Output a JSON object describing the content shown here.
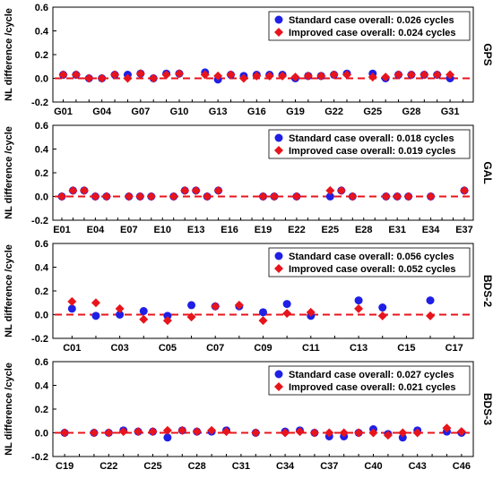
{
  "figure": {
    "ylabel": "NL difference /cycle",
    "legend_labels": {
      "standard": "Standard case overall: ",
      "improved": "Improved case overall: "
    }
  },
  "colors": {
    "standard": "#1f1fe6",
    "improved": "#e8141c",
    "zero_line": "#e8141c",
    "frame": "#000000"
  },
  "chart_data": [
    {
      "type": "scatter",
      "panel": "GPS",
      "title": "GPS",
      "ylim": [
        -0.2,
        0.6
      ],
      "yticks": [
        "-0.2",
        "0.0",
        "0.2",
        "0.4",
        "0.6"
      ],
      "grid": false,
      "legend": "top-right",
      "xlabels": [
        "G01",
        "G04",
        "G07",
        "G10",
        "G13",
        "G16",
        "G19",
        "G22",
        "G25",
        "G28",
        "G31"
      ],
      "x": [
        "G01",
        "G02",
        "G03",
        "G04",
        "G05",
        "G06",
        "G07",
        "G08",
        "G09",
        "G10",
        "G11",
        "G12",
        "G13",
        "G14",
        "G15",
        "G16",
        "G17",
        "G18",
        "G19",
        "G20",
        "G21",
        "G22",
        "G23",
        "G24",
        "G25",
        "G26",
        "G27",
        "G28",
        "G29",
        "G30",
        "G31",
        "G32"
      ],
      "series": [
        {
          "name": "Standard case overall: 0.026 cycles",
          "overall": "0.026 cycles",
          "values": [
            0.03,
            0.03,
            0.0,
            0.0,
            0.03,
            0.03,
            0.04,
            0.0,
            0.04,
            0.04,
            null,
            0.05,
            -0.01,
            0.03,
            0.02,
            0.03,
            0.03,
            0.03,
            0.0,
            0.02,
            0.02,
            0.03,
            0.04,
            null,
            0.04,
            0.0,
            0.03,
            0.03,
            0.03,
            0.03,
            0.0,
            null
          ]
        },
        {
          "name": "Improved case overall: 0.024 cycles",
          "overall": "0.024 cycles",
          "values": [
            0.03,
            0.03,
            0.0,
            0.0,
            0.03,
            0.0,
            0.04,
            0.0,
            0.03,
            0.04,
            null,
            0.03,
            0.02,
            0.03,
            0.0,
            0.02,
            0.02,
            0.02,
            0.01,
            0.02,
            0.02,
            0.03,
            0.03,
            null,
            0.01,
            0.01,
            0.03,
            0.03,
            0.03,
            0.03,
            0.03,
            null
          ]
        }
      ]
    },
    {
      "type": "scatter",
      "panel": "GAL",
      "title": "GAL",
      "ylim": [
        -0.2,
        0.6
      ],
      "yticks": [
        "-0.2",
        "0.0",
        "0.2",
        "0.4",
        "0.6"
      ],
      "grid": false,
      "legend": "top-right",
      "xlabels": [
        "E01",
        "E04",
        "E07",
        "E10",
        "E13",
        "E16",
        "E19",
        "E22",
        "E25",
        "E28",
        "E31",
        "E34",
        "E37"
      ],
      "x": [
        "E01",
        "E02",
        "E03",
        "E04",
        "E05",
        "E06",
        "E07",
        "E08",
        "E09",
        "E10",
        "E11",
        "E12",
        "E13",
        "E14",
        "E15",
        "E16",
        "E17",
        "E18",
        "E19",
        "E20",
        "E21",
        "E22",
        "E23",
        "E24",
        "E25",
        "E26",
        "E27",
        "E28",
        "E29",
        "E30",
        "E31",
        "E32",
        "E33",
        "E34",
        "E35",
        "E36",
        "E37"
      ],
      "series": [
        {
          "name": "Standard case overall: 0.018 cycles",
          "overall": "0.018 cycles",
          "values": [
            0.0,
            0.05,
            0.05,
            0.0,
            0.0,
            null,
            0.0,
            0.0,
            0.0,
            null,
            0.0,
            0.05,
            0.05,
            0.0,
            0.05,
            null,
            null,
            null,
            0.0,
            0.0,
            null,
            0.0,
            null,
            null,
            0.0,
            0.05,
            0.0,
            null,
            null,
            0.0,
            0.0,
            0.0,
            null,
            0.0,
            null,
            null,
            0.05
          ]
        },
        {
          "name": "Improved case overall: 0.019 cycles",
          "overall": "0.019 cycles",
          "values": [
            0.0,
            0.05,
            0.05,
            0.0,
            0.0,
            null,
            0.0,
            0.0,
            0.0,
            null,
            0.0,
            0.05,
            0.05,
            0.0,
            0.05,
            null,
            null,
            null,
            0.0,
            0.0,
            null,
            0.0,
            null,
            null,
            0.05,
            0.05,
            0.0,
            null,
            null,
            0.0,
            0.0,
            0.0,
            null,
            0.0,
            null,
            null,
            0.05
          ]
        }
      ]
    },
    {
      "type": "scatter",
      "panel": "BDS-2",
      "title": "BDS-2",
      "ylim": [
        -0.2,
        0.6
      ],
      "yticks": [
        "-0.2",
        "0.0",
        "0.2",
        "0.4",
        "0.6"
      ],
      "grid": false,
      "legend": "top-right",
      "xlabels": [
        "C01",
        "C03",
        "C05",
        "C07",
        "C09",
        "C11",
        "C13",
        "C15",
        "C17"
      ],
      "x": [
        "C01",
        "C02",
        "C03",
        "C04",
        "C05",
        "C06",
        "C07",
        "C08",
        "C09",
        "C10",
        "C11",
        "C12",
        "C13",
        "C14",
        "C15",
        "C16",
        "C17"
      ],
      "series": [
        {
          "name": "Standard case overall: 0.056 cycles",
          "overall": "0.056 cycles",
          "values": [
            0.05,
            -0.01,
            0.0,
            0.03,
            -0.01,
            0.08,
            0.07,
            0.07,
            0.02,
            0.09,
            -0.01,
            null,
            0.12,
            0.06,
            null,
            0.12,
            null
          ]
        },
        {
          "name": "Improved case overall: 0.052 cycles",
          "overall": "0.052 cycles",
          "values": [
            0.11,
            0.1,
            0.05,
            -0.04,
            -0.05,
            -0.02,
            0.07,
            0.08,
            -0.05,
            0.01,
            0.02,
            null,
            0.05,
            -0.01,
            null,
            -0.01,
            null
          ]
        }
      ]
    },
    {
      "type": "scatter",
      "panel": "BDS-3",
      "title": "BDS-3",
      "ylim": [
        -0.2,
        0.6
      ],
      "yticks": [
        "-0.2",
        "0.0",
        "0.2",
        "0.4",
        "0.6"
      ],
      "grid": false,
      "legend": "top-right",
      "xlabels": [
        "C19",
        "C22",
        "C25",
        "C28",
        "C31",
        "C34",
        "C37",
        "C40",
        "C43",
        "C46"
      ],
      "x": [
        "C19",
        "C20",
        "C21",
        "C22",
        "C23",
        "C24",
        "C25",
        "C26",
        "C27",
        "C28",
        "C29",
        "C30",
        "C31",
        "C32",
        "C33",
        "C34",
        "C35",
        "C36",
        "C37",
        "C38",
        "C39",
        "C40",
        "C41",
        "C42",
        "C43",
        "C44",
        "C45",
        "C46"
      ],
      "series": [
        {
          "name": "Standard case overall: 0.027 cycles",
          "overall": "0.027 cycles",
          "values": [
            0.0,
            null,
            0.0,
            0.0,
            0.02,
            0.01,
            0.01,
            -0.04,
            0.02,
            0.01,
            0.01,
            0.02,
            null,
            0.0,
            null,
            0.01,
            0.02,
            0.0,
            -0.03,
            -0.03,
            0.0,
            0.03,
            -0.01,
            -0.04,
            0.02,
            null,
            0.01,
            0.0
          ]
        },
        {
          "name": "Improved case overall: 0.021 cycles",
          "overall": "0.021 cycles",
          "values": [
            0.0,
            null,
            0.0,
            0.0,
            0.01,
            0.01,
            0.01,
            0.02,
            0.02,
            0.01,
            0.02,
            0.01,
            null,
            0.0,
            null,
            0.0,
            0.01,
            0.0,
            0.0,
            0.0,
            0.0,
            0.0,
            -0.02,
            0.0,
            0.0,
            null,
            0.04,
            0.01
          ]
        }
      ]
    }
  ]
}
